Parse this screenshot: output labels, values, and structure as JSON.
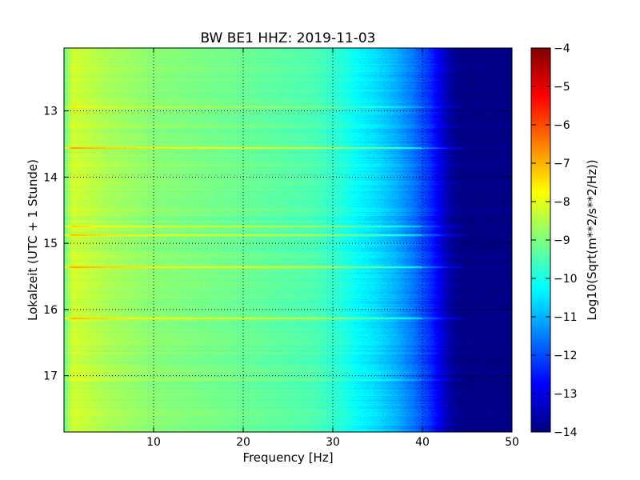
{
  "chart_data": {
    "type": "heatmap",
    "title": "BW BE1 HHZ: 2019-11-03",
    "xlabel": "Frequency [Hz]",
    "ylabel": "Lokalzeit (UTC + 1 Stunde)",
    "colorbar_label": "Log10(Sqrt(m**2/s**2/Hz))",
    "xlim": [
      0,
      50
    ],
    "ylim": [
      17.85,
      12.05
    ],
    "y_inverted": true,
    "xticks": [
      10,
      20,
      30,
      40,
      50
    ],
    "yticks": [
      13,
      14,
      15,
      16,
      17
    ],
    "clim": [
      -14,
      -4
    ],
    "colorbar_ticks": [
      -14,
      -13,
      -12,
      -11,
      -10,
      -9,
      -8,
      -7,
      -6,
      -5,
      -4
    ],
    "colormap": "jet",
    "grid": true,
    "spectrum_profile": {
      "frequency_hz": [
        0,
        1,
        2,
        5,
        10,
        20,
        28,
        31,
        33,
        35,
        37,
        39,
        41,
        42,
        43,
        44,
        45,
        50
      ],
      "log10_amplitude": [
        -9.2,
        -8.2,
        -8.3,
        -8.6,
        -8.9,
        -9.2,
        -9.5,
        -9.9,
        -10.3,
        -10.6,
        -11.0,
        -11.6,
        -12.4,
        -13.0,
        -13.6,
        -13.9,
        -14.0,
        -14.0
      ]
    },
    "bright_bands": [
      {
        "time": 12.95,
        "log10_boost": 0.6
      },
      {
        "time": 13.56,
        "log10_boost": 1.3
      },
      {
        "time": 14.74,
        "log10_boost": 0.9
      },
      {
        "time": 14.88,
        "log10_boost": 1.1
      },
      {
        "time": 15.36,
        "log10_boost": 1.2
      },
      {
        "time": 16.13,
        "log10_boost": 1.1
      },
      {
        "time": 17.07,
        "log10_boost": 0.5
      }
    ]
  }
}
